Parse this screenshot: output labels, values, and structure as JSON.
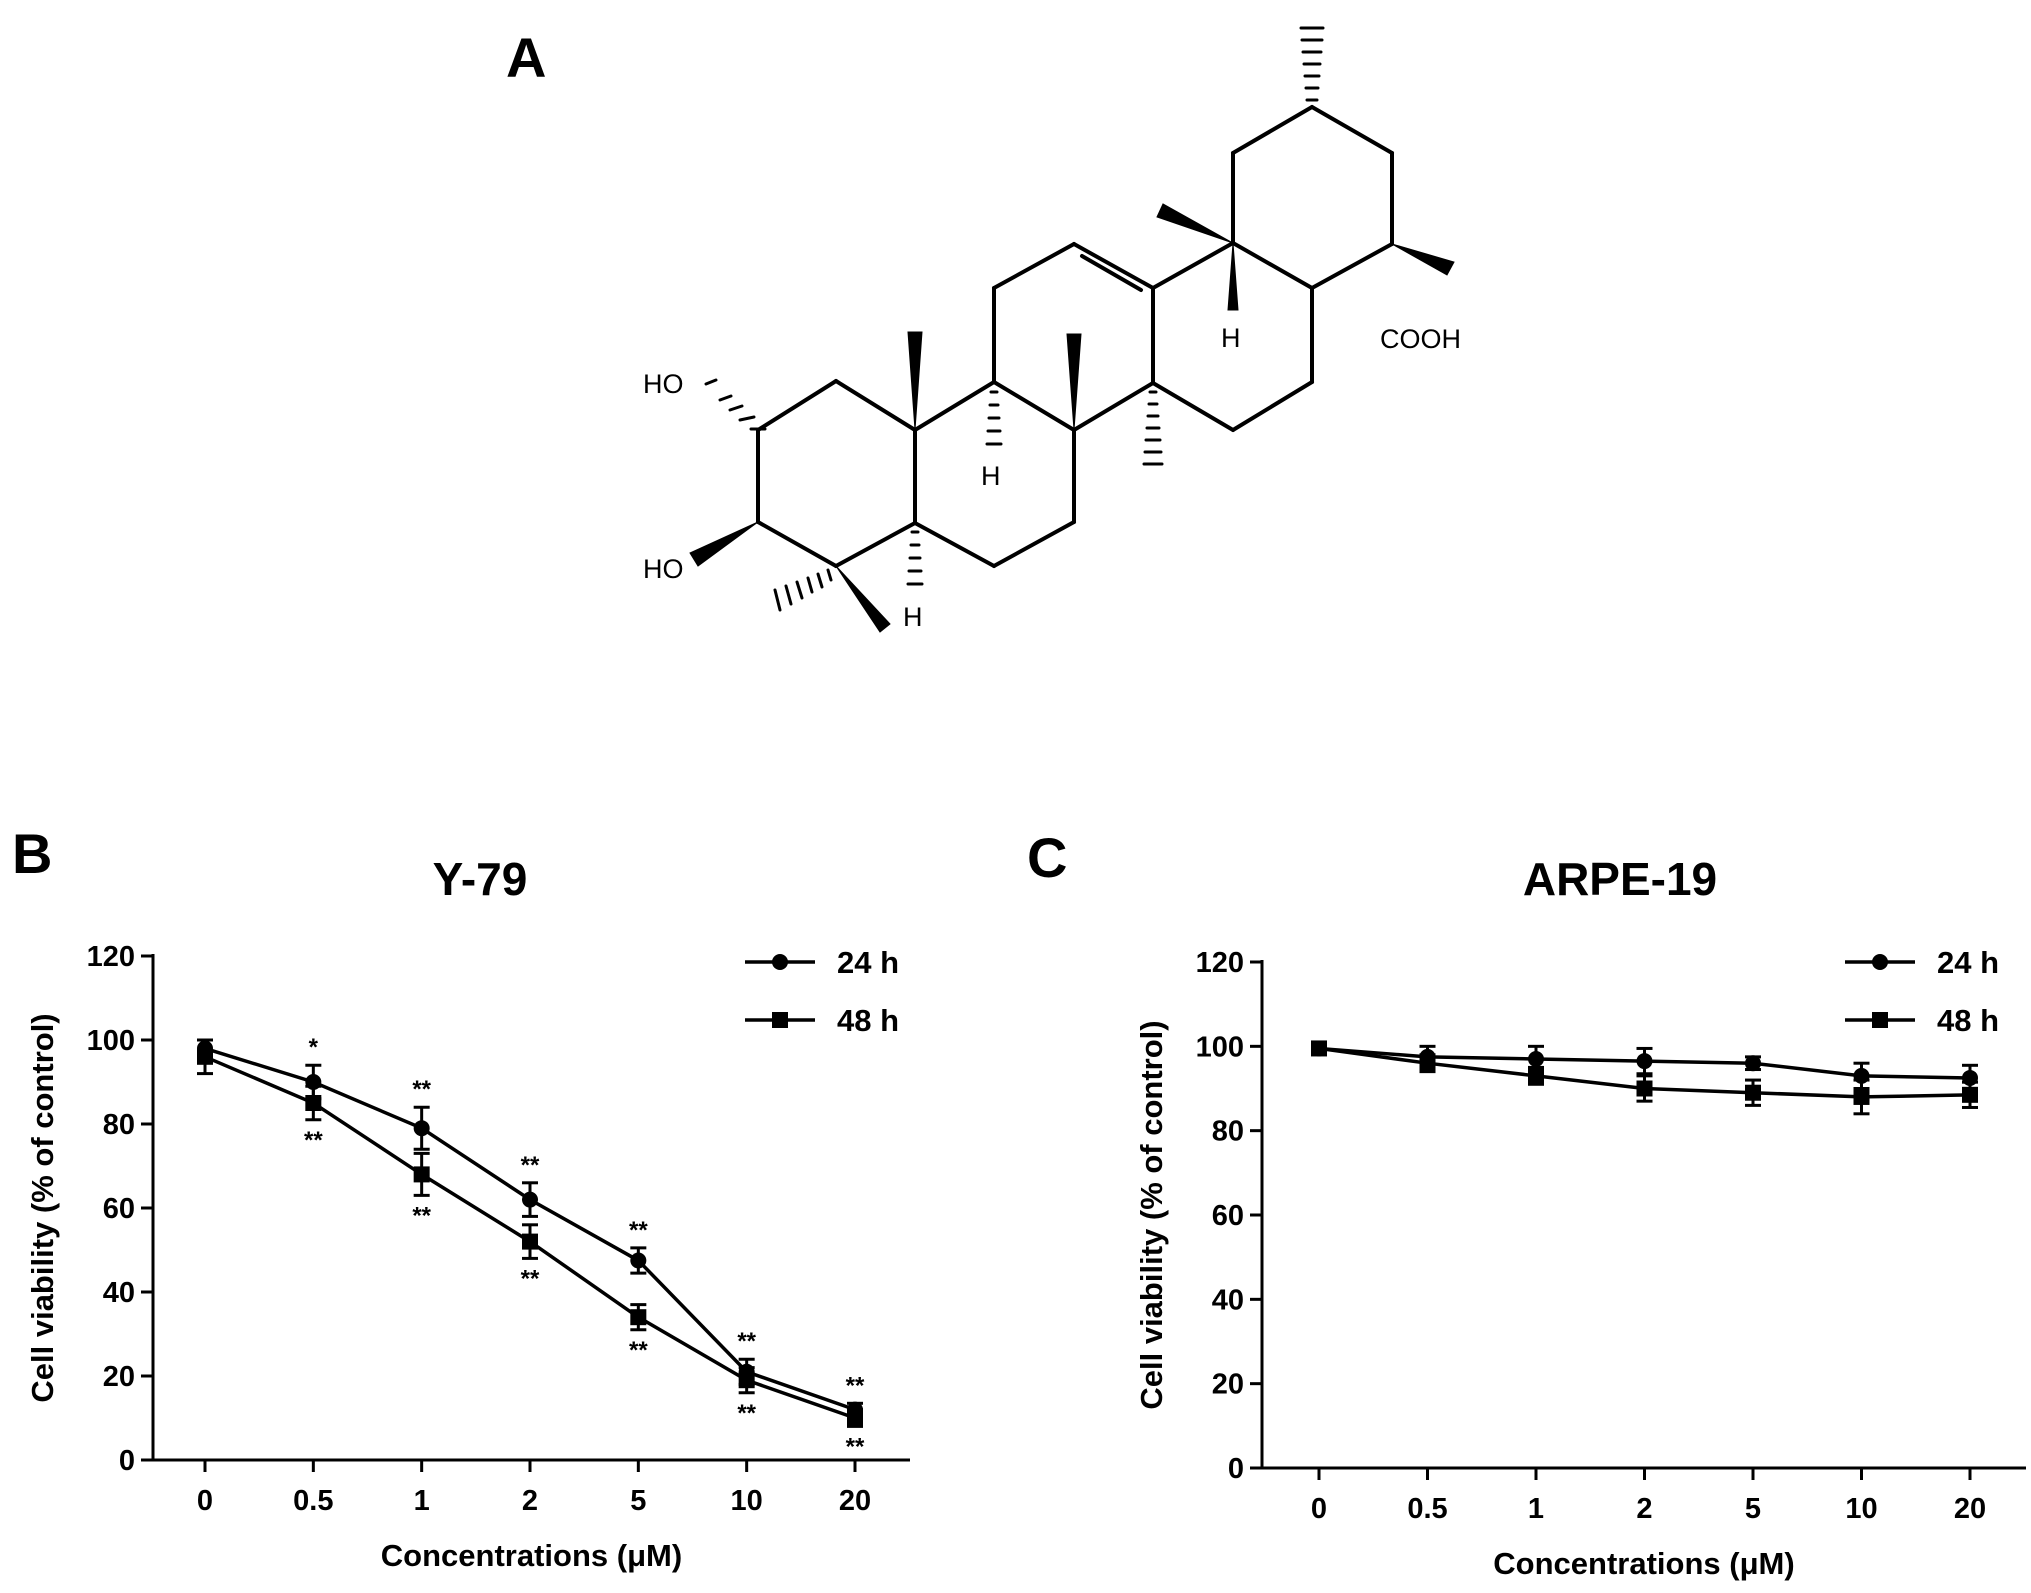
{
  "panels": {
    "a_letter": "A",
    "b_letter": "B",
    "c_letter": "C"
  },
  "structure": {
    "labels": {
      "ho_top": "HO",
      "ho_bottom": "HO",
      "h_ring_a": "H",
      "h_ring_b": "H",
      "h_ring_e": "H",
      "cooh": "COOH"
    }
  },
  "chart_data": [
    {
      "type": "line",
      "title": "Y-79",
      "xlabel": "Concentrations (μM)",
      "ylabel": "Cell viability (% of control)",
      "categories": [
        "0",
        "0.5",
        "1",
        "2",
        "5",
        "10",
        "20"
      ],
      "ylim": [
        0,
        120
      ],
      "yticks": [
        "0",
        "20",
        "40",
        "60",
        "80",
        "100",
        "120"
      ],
      "legend_position": "top-right",
      "series": [
        {
          "name": "24 h",
          "marker": "circle",
          "values": [
            98,
            90,
            79,
            62,
            47.5,
            21,
            12
          ],
          "errors": [
            2,
            4,
            5,
            4,
            3,
            3,
            1.5
          ],
          "annotations": [
            "",
            "*",
            "**",
            "**",
            "**",
            "**",
            "**"
          ]
        },
        {
          "name": "48 h",
          "marker": "square",
          "values": [
            96,
            85,
            68,
            52,
            34,
            19,
            10
          ],
          "errors": [
            4,
            4,
            5,
            4,
            3,
            3,
            2
          ],
          "annotations": [
            "",
            "**",
            "**",
            "**",
            "**",
            "**",
            "**"
          ]
        }
      ]
    },
    {
      "type": "line",
      "title": "ARPE-19",
      "xlabel": "Concentrations (μM)",
      "ylabel": "Cell viability (% of control)",
      "categories": [
        "0",
        "0.5",
        "1",
        "2",
        "5",
        "10",
        "20"
      ],
      "ylim": [
        0,
        120
      ],
      "yticks": [
        "0",
        "20",
        "40",
        "60",
        "80",
        "100",
        "120"
      ],
      "legend_position": "top-right",
      "series": [
        {
          "name": "24 h",
          "marker": "circle",
          "values": [
            99.5,
            97.5,
            97,
            96.5,
            96,
            93,
            92.5
          ],
          "errors": [
            1,
            2.5,
            3,
            3,
            1.5,
            3,
            3
          ],
          "annotations": [
            "",
            "",
            "",
            "",
            "",
            "",
            ""
          ]
        },
        {
          "name": "48 h",
          "marker": "square",
          "values": [
            99.5,
            96,
            93,
            90,
            89,
            88,
            88.5
          ],
          "errors": [
            1,
            2,
            2,
            3,
            3,
            4,
            3
          ],
          "annotations": [
            "",
            "",
            "",
            "",
            "",
            "",
            ""
          ]
        }
      ]
    }
  ]
}
